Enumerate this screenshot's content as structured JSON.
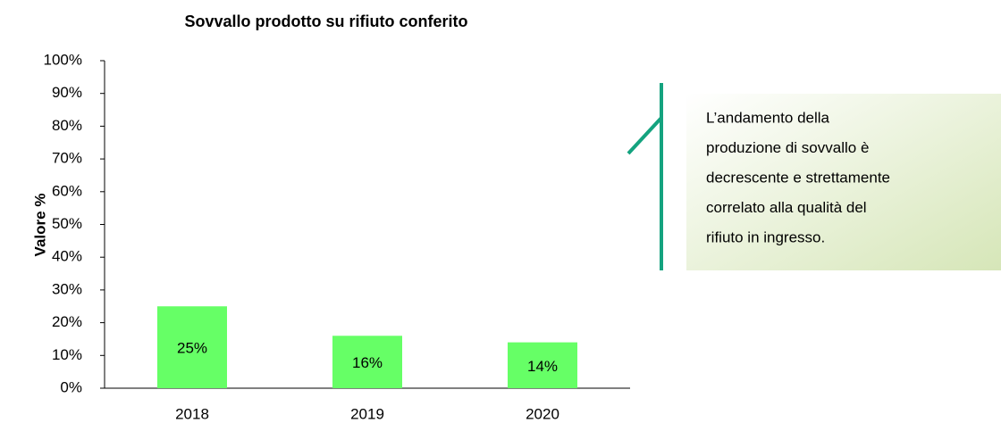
{
  "chart_data": {
    "type": "bar",
    "title": "Sovvallo prodotto su rifiuto conferito",
    "y_label": "Valore %",
    "categories": [
      "2018",
      "2019",
      "2020"
    ],
    "values": [
      25,
      16,
      14
    ],
    "value_labels": [
      "25%",
      "16%",
      "14%"
    ],
    "color": "#66ff66",
    "ylim": [
      0,
      100
    ],
    "yticks": [
      {
        "value": 0,
        "label": "0%"
      },
      {
        "value": 10,
        "label": "10%"
      },
      {
        "value": 20,
        "label": "20%"
      },
      {
        "value": 30,
        "label": "30%"
      },
      {
        "value": 40,
        "label": "40%"
      },
      {
        "value": 50,
        "label": "50%"
      },
      {
        "value": 60,
        "label": "60%"
      },
      {
        "value": 70,
        "label": "70%"
      },
      {
        "value": 80,
        "label": "80%"
      },
      {
        "value": 90,
        "label": "90%"
      },
      {
        "value": 100,
        "label": "100%"
      }
    ],
    "grid": false,
    "annotation": [
      "L’andamento della",
      "produzione di sovvallo è",
      "decrescente e strettamente",
      "correlato alla qualità del",
      "rifiuto in ingresso."
    ]
  }
}
